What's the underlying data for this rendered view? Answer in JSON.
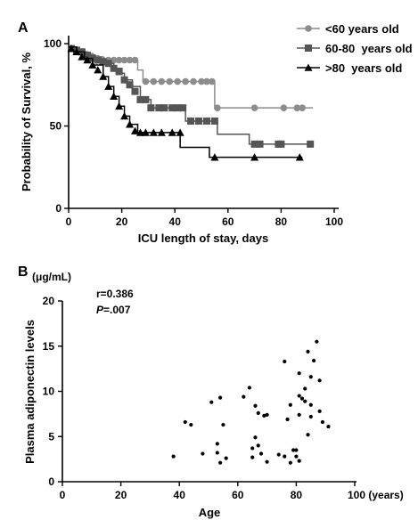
{
  "panel_a": {
    "label": "A",
    "chart_data": {
      "type": "line",
      "xlabel": "ICU length of stay, days",
      "ylabel": "Probability of Survival, %",
      "xlim": [
        0,
        100
      ],
      "ylim": [
        0,
        100
      ],
      "xticks": [
        "0",
        "20",
        "40",
        "60",
        "80",
        "100"
      ],
      "yticks": [
        "0",
        "50",
        "100"
      ],
      "legend_position": "top-right",
      "series": [
        {
          "name": "<60 years old",
          "marker": "circle",
          "color": "#8c8c8c",
          "steps": [
            [
              0,
              98
            ],
            [
              3,
              96
            ],
            [
              6,
              94
            ],
            [
              9,
              92
            ],
            [
              13,
              90
            ],
            [
              26,
              84
            ],
            [
              28,
              77
            ],
            [
              55,
              61
            ],
            [
              92,
              61
            ]
          ],
          "markers": [
            [
              1,
              97
            ],
            [
              3,
              96
            ],
            [
              5,
              95
            ],
            [
              7,
              93
            ],
            [
              9,
              92
            ],
            [
              11,
              91
            ],
            [
              13,
              90
            ],
            [
              15,
              90
            ],
            [
              17,
              90
            ],
            [
              19,
              90
            ],
            [
              21,
              90
            ],
            [
              23,
              90
            ],
            [
              25,
              90
            ],
            [
              29,
              77
            ],
            [
              32,
              77
            ],
            [
              35,
              77
            ],
            [
              38,
              77
            ],
            [
              41,
              77
            ],
            [
              44,
              77
            ],
            [
              47,
              77
            ],
            [
              50,
              77
            ],
            [
              52,
              77
            ],
            [
              54,
              77
            ],
            [
              56,
              61
            ],
            [
              70,
              61
            ],
            [
              81,
              61
            ],
            [
              86,
              61
            ],
            [
              88,
              61
            ]
          ]
        },
        {
          "name": "60-80  years old",
          "marker": "square",
          "color": "#555555",
          "steps": [
            [
              0,
              98
            ],
            [
              3,
              96
            ],
            [
              5,
              95
            ],
            [
              7,
              93
            ],
            [
              10,
              90
            ],
            [
              14,
              88
            ],
            [
              17,
              85
            ],
            [
              20,
              82
            ],
            [
              21,
              78
            ],
            [
              24,
              74
            ],
            [
              27,
              66
            ],
            [
              31,
              61
            ],
            [
              44,
              53
            ],
            [
              56,
              45
            ],
            [
              68,
              39
            ],
            [
              92,
              39
            ]
          ],
          "markers": [
            [
              1,
              97
            ],
            [
              3,
              96
            ],
            [
              5,
              95
            ],
            [
              7,
              93
            ],
            [
              9,
              91
            ],
            [
              11,
              90
            ],
            [
              13,
              89
            ],
            [
              15,
              88
            ],
            [
              17,
              85
            ],
            [
              19,
              83
            ],
            [
              21,
              78
            ],
            [
              23,
              75
            ],
            [
              25,
              71
            ],
            [
              27,
              66
            ],
            [
              29,
              66
            ],
            [
              31,
              61
            ],
            [
              34,
              61
            ],
            [
              36,
              61
            ],
            [
              39,
              61
            ],
            [
              41,
              61
            ],
            [
              43,
              61
            ],
            [
              46,
              53
            ],
            [
              49,
              53
            ],
            [
              52,
              53
            ],
            [
              55,
              53
            ],
            [
              70,
              39
            ],
            [
              72,
              39
            ],
            [
              79,
              39
            ],
            [
              80,
              39
            ],
            [
              91,
              39
            ]
          ]
        },
        {
          "name": ">80  years old",
          "marker": "triangle",
          "color": "#000000",
          "steps": [
            [
              0,
              98
            ],
            [
              3,
              95
            ],
            [
              6,
              91
            ],
            [
              9,
              87
            ],
            [
              13,
              80
            ],
            [
              15,
              74
            ],
            [
              17,
              68
            ],
            [
              19,
              62
            ],
            [
              21,
              56
            ],
            [
              23,
              51
            ],
            [
              26,
              46
            ],
            [
              42,
              37
            ],
            [
              53,
              31
            ],
            [
              88,
              31
            ]
          ],
          "markers": [
            [
              1,
              97
            ],
            [
              3,
              95
            ],
            [
              5,
              92
            ],
            [
              7,
              90
            ],
            [
              9,
              87
            ],
            [
              11,
              84
            ],
            [
              13,
              80
            ],
            [
              15,
              74
            ],
            [
              17,
              68
            ],
            [
              19,
              62
            ],
            [
              21,
              56
            ],
            [
              23,
              51
            ],
            [
              25,
              47
            ],
            [
              27,
              46
            ],
            [
              29,
              46
            ],
            [
              32,
              46
            ],
            [
              35,
              46
            ],
            [
              39,
              46
            ],
            [
              42,
              46
            ],
            [
              55,
              31
            ],
            [
              70,
              31
            ],
            [
              87,
              31
            ]
          ]
        }
      ]
    }
  },
  "panel_b": {
    "label": "B",
    "unit_label": "(μg/mL)",
    "stats_r": "r=0.386",
    "stats_p_letter": "P",
    "stats_p_value": "=.007",
    "chart_data": {
      "type": "scatter",
      "xlabel": "Age",
      "ylabel": "Plasma adiponectin levels",
      "xlim": [
        0,
        100
      ],
      "ylim": [
        0,
        20
      ],
      "xticks": [
        "0",
        "20",
        "40",
        "60",
        "80",
        "100 (years)"
      ],
      "yticks": [
        "0",
        "5",
        "10",
        "15",
        "20"
      ],
      "points": [
        [
          38,
          2.8
        ],
        [
          42,
          6.6
        ],
        [
          44,
          6.3
        ],
        [
          48,
          3.1
        ],
        [
          51,
          8.8
        ],
        [
          53,
          4.2
        ],
        [
          53,
          3.2
        ],
        [
          54,
          2.1
        ],
        [
          54,
          9.3
        ],
        [
          55,
          6.3
        ],
        [
          56,
          2.6
        ],
        [
          62,
          9.4
        ],
        [
          64,
          10.4
        ],
        [
          65,
          3.7
        ],
        [
          65,
          2.7
        ],
        [
          66,
          4.9
        ],
        [
          66,
          8.4
        ],
        [
          67,
          7.6
        ],
        [
          67,
          4.0
        ],
        [
          68,
          3.1
        ],
        [
          69,
          7.3
        ],
        [
          70,
          2.2
        ],
        [
          70,
          7.4
        ],
        [
          74,
          3.0
        ],
        [
          76,
          2.8
        ],
        [
          76,
          13.3
        ],
        [
          77,
          6.9
        ],
        [
          78,
          2.1
        ],
        [
          78,
          8.5
        ],
        [
          79,
          3.5
        ],
        [
          80,
          2.8
        ],
        [
          80,
          3.5
        ],
        [
          81,
          7.4
        ],
        [
          81,
          9.5
        ],
        [
          81,
          12.0
        ],
        [
          81,
          2.3
        ],
        [
          82,
          9.2
        ],
        [
          83,
          10.3
        ],
        [
          83,
          8.9
        ],
        [
          84,
          5.2
        ],
        [
          84,
          14.4
        ],
        [
          85,
          7.2
        ],
        [
          85,
          8.5
        ],
        [
          85,
          11.6
        ],
        [
          86,
          13.4
        ],
        [
          87,
          15.5
        ],
        [
          88,
          7.8
        ],
        [
          88,
          11.2
        ],
        [
          89,
          6.6
        ],
        [
          91,
          6.1
        ]
      ]
    }
  }
}
